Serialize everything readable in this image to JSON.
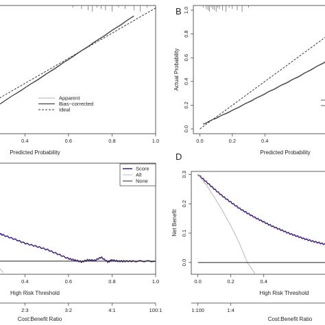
{
  "chart_data": [
    {
      "id": "A",
      "type": "line",
      "panel_label": "",
      "xlabel": "Predicted Probability",
      "ylabel": "",
      "xlim": [
        0.27,
        1.0
      ],
      "ylim": [
        0.0,
        1.02
      ],
      "x_ticks": [
        "0.4",
        "0.6",
        "0.8",
        "1.0"
      ],
      "x_tick_values": [
        0.4,
        0.6,
        0.8,
        1.0
      ],
      "y_ticks": [],
      "legend_position": "bottom-center",
      "series": [
        {
          "name": "Apparent",
          "style": "gray-thin",
          "x": [
            0.27,
            0.5,
            0.7,
            0.9
          ],
          "y": [
            0.22,
            0.48,
            0.71,
            0.94
          ]
        },
        {
          "name": "Bias−corrected",
          "style": "solid",
          "x": [
            0.27,
            0.5,
            0.7,
            0.9
          ],
          "y": [
            0.22,
            0.475,
            0.705,
            0.935
          ]
        },
        {
          "name": "Ideal",
          "style": "dashed",
          "x": [
            0.27,
            1.0
          ],
          "y": [
            0.27,
            1.0
          ]
        }
      ],
      "rug_x": [
        0.62,
        0.66,
        0.69,
        0.71,
        0.73,
        0.75,
        0.77,
        0.8,
        0.83,
        0.86,
        0.9,
        0.93,
        0.96
      ]
    },
    {
      "id": "B",
      "type": "line",
      "panel_label": "B",
      "xlabel": "Predicted Probability",
      "ylabel": "Actual Probability",
      "xlim": [
        -0.04,
        0.88
      ],
      "ylim": [
        -0.04,
        1.04
      ],
      "x_ticks": [
        "0.0",
        "0.2",
        "0.4"
      ],
      "x_tick_values": [
        0.0,
        0.2,
        0.4
      ],
      "y_ticks": [
        "0.0",
        "0.2",
        "0.4",
        "0.6",
        "0.8",
        "1.0"
      ],
      "y_tick_values": [
        0.0,
        0.2,
        0.4,
        0.6,
        0.8,
        1.0
      ],
      "series": [
        {
          "name": "Apparent",
          "style": "gray-thin",
          "x": [
            0.02,
            0.2,
            0.4,
            0.6,
            0.8,
            0.88
          ],
          "y": [
            0.04,
            0.16,
            0.3,
            0.44,
            0.59,
            0.65
          ]
        },
        {
          "name": "Bias-corrected",
          "style": "solid",
          "x": [
            0.02,
            0.2,
            0.4,
            0.6,
            0.8,
            0.88
          ],
          "y": [
            0.04,
            0.155,
            0.295,
            0.435,
            0.585,
            0.645
          ]
        },
        {
          "name": "Ideal",
          "style": "dashed",
          "x": [
            0.0,
            0.88
          ],
          "y": [
            0.0,
            0.88
          ]
        }
      ],
      "rug_x": [
        0.02,
        0.04,
        0.05,
        0.06,
        0.07,
        0.08,
        0.09,
        0.1,
        0.11,
        0.12,
        0.14,
        0.16,
        0.18,
        0.2,
        0.23,
        0.26,
        0.3
      ]
    },
    {
      "id": "C",
      "type": "line",
      "panel_label": "",
      "xlabel": "High Risk Threshold",
      "ylabel": "",
      "xlim": [
        0.27,
        1.0
      ],
      "ylim": [
        -0.04,
        0.3
      ],
      "x_ticks": [
        "0.4",
        "0.6",
        "0.8",
        "1.0"
      ],
      "x_tick_values": [
        0.4,
        0.6,
        0.8,
        1.0
      ],
      "cost_benefit_label": "Cost:Benefit Ratio",
      "cost_benefit_ticks": [
        "2:3",
        "3:2",
        "4:1",
        "100:1"
      ],
      "cost_benefit_tick_values": [
        0.4,
        0.6,
        0.8,
        1.0
      ],
      "legend_position": "top-right",
      "series": [
        {
          "name": "Score",
          "style": "purple",
          "x": [
            0.27,
            0.3,
            0.35,
            0.4,
            0.45,
            0.5,
            0.55,
            0.6,
            0.63,
            0.66,
            0.69,
            0.72,
            0.75,
            0.78,
            0.8,
            0.83,
            0.86,
            0.9,
            1.0
          ],
          "y": [
            0.088,
            0.08,
            0.068,
            0.055,
            0.046,
            0.036,
            0.022,
            0.008,
            0.003,
            -0.002,
            0.004,
            0.002,
            0.012,
            -0.002,
            0.003,
            0.0,
            0.0,
            0.0,
            0.0
          ]
        },
        {
          "name": "All",
          "style": "gray-thin",
          "x": [
            0.27,
            0.3
          ],
          "y": [
            -0.01,
            -0.035
          ]
        },
        {
          "name": "None",
          "style": "solid",
          "x": [
            0.27,
            1.0
          ],
          "y": [
            0.0,
            0.0
          ]
        }
      ]
    },
    {
      "id": "D",
      "type": "line",
      "panel_label": "D",
      "xlabel": "High Risk Threshold",
      "ylabel": "Net Benefit",
      "xlim": [
        -0.04,
        0.88
      ],
      "ylim": [
        -0.04,
        0.31
      ],
      "x_ticks": [
        "0.0",
        "0.2",
        "0.4"
      ],
      "x_tick_values": [
        0.0,
        0.2,
        0.4
      ],
      "y_ticks": [
        "0.0",
        "0.1",
        "0.2",
        "0.3"
      ],
      "y_tick_values": [
        0.0,
        0.1,
        0.2,
        0.3
      ],
      "cost_benefit_label": "Cost:Benefit Ratio",
      "cost_benefit_ticks": [
        "1:100",
        "1:4"
      ],
      "cost_benefit_tick_values": [
        0.0,
        0.2
      ],
      "series": [
        {
          "name": "Score",
          "style": "purple",
          "x": [
            0.0,
            0.05,
            0.1,
            0.15,
            0.2,
            0.25,
            0.3,
            0.35,
            0.4,
            0.45,
            0.5,
            0.55,
            0.6,
            0.65,
            0.7,
            0.75,
            0.8,
            0.85,
            0.88
          ],
          "y": [
            0.3,
            0.275,
            0.25,
            0.226,
            0.205,
            0.185,
            0.168,
            0.152,
            0.138,
            0.124,
            0.112,
            0.1,
            0.09,
            0.08,
            0.072,
            0.065,
            0.058,
            0.052,
            0.05
          ]
        },
        {
          "name": "All",
          "style": "gray-thin",
          "x": [
            0.0,
            0.05,
            0.1,
            0.15,
            0.2,
            0.25,
            0.3,
            0.35
          ],
          "y": [
            0.3,
            0.265,
            0.222,
            0.176,
            0.125,
            0.068,
            0.0,
            -0.04
          ]
        },
        {
          "name": "None",
          "style": "solid",
          "x": [
            0.0,
            0.88
          ],
          "y": [
            0.0,
            0.0
          ]
        }
      ]
    }
  ]
}
